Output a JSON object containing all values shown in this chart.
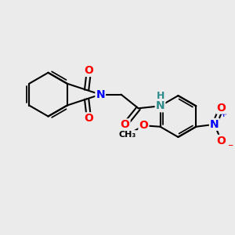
{
  "background_color": "#ebebeb",
  "bond_color": "#000000",
  "bond_width": 1.5,
  "atom_colors": {
    "O": "#ff0000",
    "N_blue": "#0000ff",
    "N_teal": "#2e8b8b",
    "C": "#000000"
  },
  "font_size_atom": 10,
  "font_size_small": 8,
  "xlim": [
    0,
    10
  ],
  "ylim": [
    0,
    10
  ]
}
